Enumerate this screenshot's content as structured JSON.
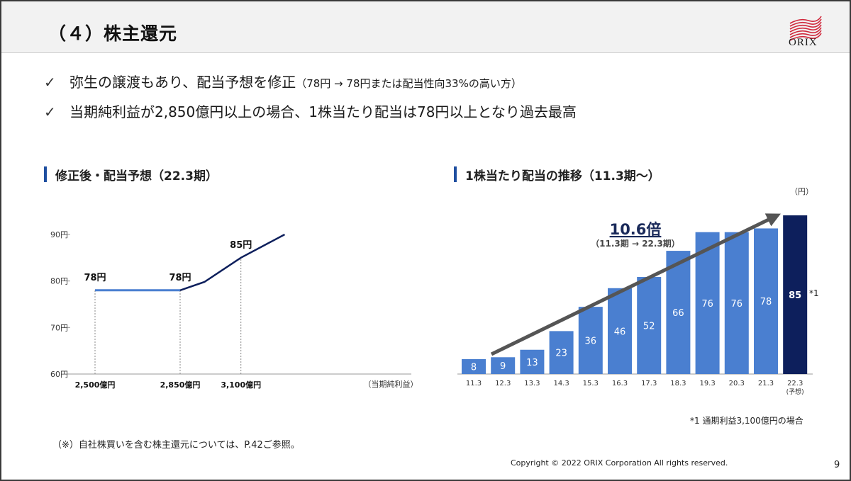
{
  "header": {
    "title": "（４）株主還元",
    "logo_text": "ORIX"
  },
  "bullets": [
    {
      "check": "✓",
      "main": "弥生の譲渡もあり、配当予想を修正",
      "sub": "（78円 → 78円または配当性向33%の高い方）"
    },
    {
      "check": "✓",
      "main": "当期純利益が2,850億円以上の場合、1株当たり配当は78円以上となり過去最高",
      "sub": ""
    }
  ],
  "left_section": {
    "title": "修正後・配当予想（22.3期）"
  },
  "right_section": {
    "title": "1株当たり配当の推移（11.3期～）",
    "unit": "（円）"
  },
  "annotation": {
    "main": "10.6倍",
    "sub": "（11.3期 → 22.3期）"
  },
  "bar_note": "*1",
  "right_note": "*1 通期利益3,100億円の場合",
  "footnote": "（※）自社株買いを含む株主還元については、P.42ご参照。",
  "copyright": "Copyright © 2022 ORIX Corporation  All rights reserved.",
  "page_number": "9",
  "colors": {
    "bar": "#4a7fd0",
    "bar_highlight": "#0d1f5c",
    "line": "#0d1f5c",
    "line_flat": "#4a7fd0",
    "accent": "#1f4fa0",
    "logo": "#d0283c",
    "arrow": "#555555"
  },
  "chart_data": [
    {
      "type": "line",
      "title": "修正後・配当予想（22.3期）",
      "xlabel": "（当期純利益）",
      "x_ticks": [
        "2,500億円",
        "2,850億円",
        "3,100億円"
      ],
      "y_ticks": [
        "60円",
        "70円",
        "80円",
        "90円"
      ],
      "ylim": [
        60,
        90
      ],
      "series": [
        {
          "segment": "flat",
          "points": [
            [
              2500,
              78
            ],
            [
              2850,
              78
            ]
          ]
        },
        {
          "segment": "payout",
          "points": [
            [
              2850,
              78
            ],
            [
              2950,
              79.8
            ],
            [
              3100,
              85
            ],
            [
              3280,
              90
            ]
          ]
        }
      ],
      "data_labels": [
        {
          "x": 2500,
          "y": 78,
          "text": "78円"
        },
        {
          "x": 2850,
          "y": 78,
          "text": "78円"
        },
        {
          "x": 3100,
          "y": 85,
          "text": "85円"
        }
      ],
      "reference_lines_x": [
        2500,
        2850,
        3100
      ]
    },
    {
      "type": "bar",
      "title": "1株当たり配当の推移（11.3期～）",
      "ylabel": "（円）",
      "categories": [
        "11.3",
        "12.3",
        "13.3",
        "14.3",
        "15.3",
        "16.3",
        "17.3",
        "18.3",
        "19.3",
        "20.3",
        "21.3",
        "22.3"
      ],
      "category_sublabels": [
        "",
        "",
        "",
        "",
        "",
        "",
        "",
        "",
        "",
        "",
        "",
        "(予想)"
      ],
      "values": [
        8,
        9,
        13,
        23,
        36,
        46,
        52,
        66,
        76,
        76,
        78,
        85
      ],
      "highlight_index": 11,
      "ylim": [
        0,
        85
      ]
    }
  ]
}
